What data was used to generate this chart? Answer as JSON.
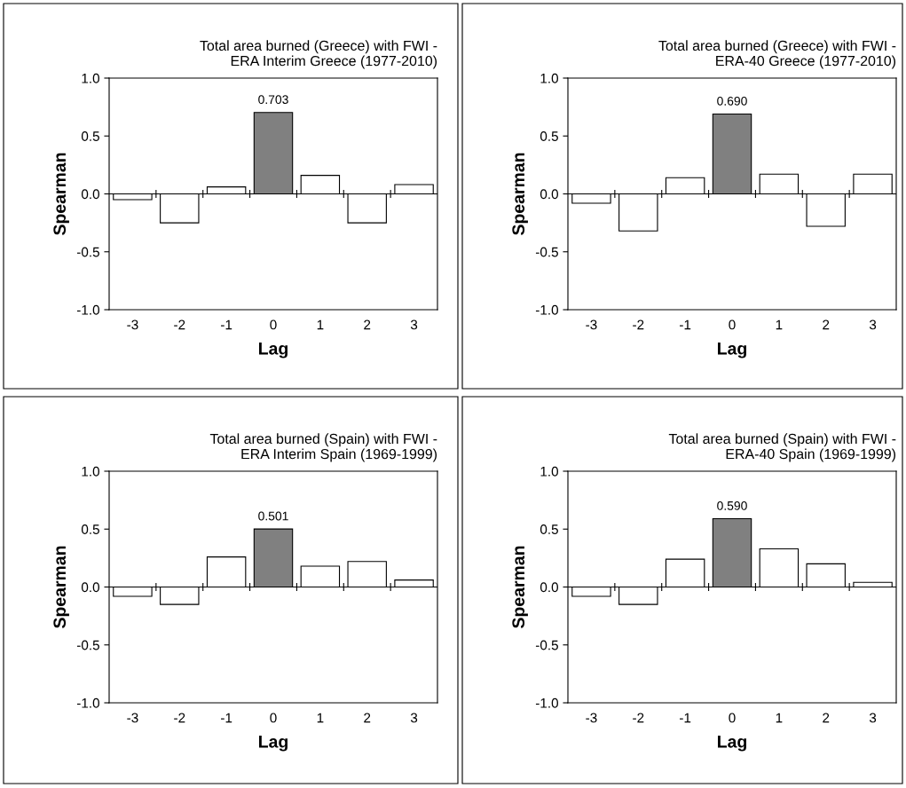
{
  "chart_data": [
    {
      "type": "bar",
      "title": "Total area burned (Greece) with FWI -\nERA Interim Greece (1977-2010)",
      "xlabel": "Lag",
      "ylabel": "Spearman",
      "categories": [
        "-3",
        "-2",
        "-1",
        "0",
        "1",
        "2",
        "3"
      ],
      "values": [
        -0.05,
        -0.25,
        0.06,
        0.703,
        0.16,
        -0.25,
        0.08
      ],
      "colors": [
        "#ffffff",
        "#ffffff",
        "#ffffff",
        "#808080",
        "#ffffff",
        "#ffffff",
        "#ffffff"
      ],
      "value_labels": [
        null,
        null,
        null,
        "0.703",
        null,
        null,
        null
      ],
      "ylim": [
        -1,
        1
      ],
      "yticks": [
        {
          "value": -1,
          "label": "-1.0"
        },
        {
          "value": -0.5,
          "label": "-0.5"
        },
        {
          "value": 0,
          "label": "0.0"
        },
        {
          "value": 0.5,
          "label": "0.5"
        },
        {
          "value": 1,
          "label": "1.0"
        }
      ]
    },
    {
      "type": "bar",
      "title": "Total area burned (Greece) with FWI -\nERA-40 Greece (1977-2010)",
      "xlabel": "Lag",
      "ylabel": "Spearman",
      "categories": [
        "-3",
        "-2",
        "-1",
        "0",
        "1",
        "2",
        "3"
      ],
      "values": [
        -0.08,
        -0.32,
        0.14,
        0.69,
        0.17,
        -0.28,
        0.17
      ],
      "colors": [
        "#ffffff",
        "#ffffff",
        "#ffffff",
        "#808080",
        "#ffffff",
        "#ffffff",
        "#ffffff"
      ],
      "value_labels": [
        null,
        null,
        null,
        "0.690",
        null,
        null,
        null
      ],
      "ylim": [
        -1,
        1
      ],
      "yticks": [
        {
          "value": -1,
          "label": "-1.0"
        },
        {
          "value": -0.5,
          "label": "-0.5"
        },
        {
          "value": 0,
          "label": "0.0"
        },
        {
          "value": 0.5,
          "label": "0.5"
        },
        {
          "value": 1,
          "label": "1.0"
        }
      ]
    },
    {
      "type": "bar",
      "title": "Total area burned (Spain) with FWI -\nERA Interim Spain (1969-1999)",
      "xlabel": "Lag",
      "ylabel": "Spearman",
      "categories": [
        "-3",
        "-2",
        "-1",
        "0",
        "1",
        "2",
        "3"
      ],
      "values": [
        -0.08,
        -0.15,
        0.26,
        0.501,
        0.18,
        0.22,
        0.06
      ],
      "colors": [
        "#ffffff",
        "#ffffff",
        "#ffffff",
        "#808080",
        "#ffffff",
        "#ffffff",
        "#ffffff"
      ],
      "value_labels": [
        null,
        null,
        null,
        "0.501",
        null,
        null,
        null
      ],
      "ylim": [
        -1,
        1
      ],
      "yticks": [
        {
          "value": -1,
          "label": "-1.0"
        },
        {
          "value": -0.5,
          "label": "-0.5"
        },
        {
          "value": 0,
          "label": "0.0"
        },
        {
          "value": 0.5,
          "label": "0.5"
        },
        {
          "value": 1,
          "label": "1.0"
        }
      ]
    },
    {
      "type": "bar",
      "title": "Total area burned (Spain) with FWI -\nERA-40 Spain (1969-1999)",
      "xlabel": "Lag",
      "ylabel": "Spearman",
      "categories": [
        "-3",
        "-2",
        "-1",
        "0",
        "1",
        "2",
        "3"
      ],
      "values": [
        -0.08,
        -0.15,
        0.24,
        0.59,
        0.33,
        0.2,
        0.04
      ],
      "colors": [
        "#ffffff",
        "#ffffff",
        "#ffffff",
        "#808080",
        "#ffffff",
        "#ffffff",
        "#ffffff"
      ],
      "value_labels": [
        null,
        null,
        null,
        "0.590",
        null,
        null,
        null
      ],
      "ylim": [
        -1,
        1
      ],
      "yticks": [
        {
          "value": -1,
          "label": "-1.0"
        },
        {
          "value": -0.5,
          "label": "-0.5"
        },
        {
          "value": 0,
          "label": "0.0"
        },
        {
          "value": 0.5,
          "label": "0.5"
        },
        {
          "value": 1,
          "label": "1.0"
        }
      ]
    }
  ]
}
